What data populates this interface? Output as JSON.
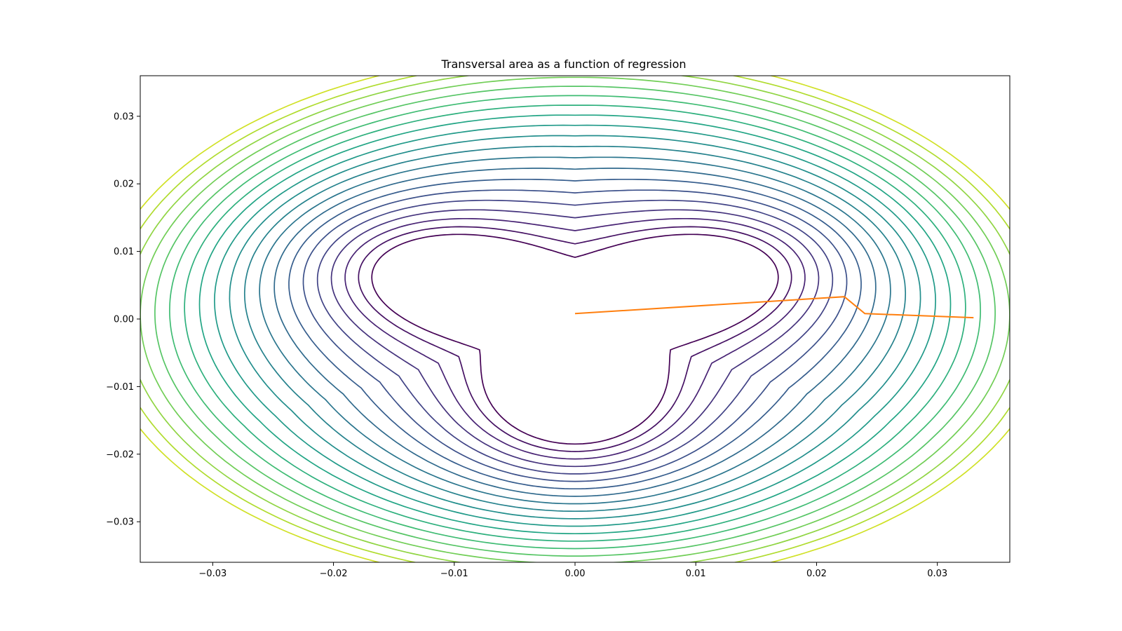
{
  "chart_data": {
    "type": "line",
    "subtype": "contour",
    "title": "Transversal area as a function of regression",
    "xlabel": "",
    "ylabel": "",
    "xlim": [
      -0.036,
      0.036
    ],
    "ylim": [
      -0.036,
      0.036
    ],
    "xticks": [
      -0.03,
      -0.02,
      -0.01,
      0.0,
      0.01,
      0.02,
      0.03
    ],
    "xtick_labels": [
      "−0.03",
      "−0.02",
      "−0.01",
      "0.00",
      "0.01",
      "0.02",
      "0.03"
    ],
    "yticks": [
      0.03,
      0.02,
      0.01,
      0.0,
      -0.01,
      -0.02,
      -0.03
    ],
    "ytick_labels": [
      "0.03",
      "0.02",
      "0.01",
      "0.00",
      "−0.01",
      "−0.02",
      "−0.03"
    ],
    "grid": false,
    "legend": "none",
    "contours": {
      "count": 20,
      "colormap": "viridis",
      "colormap_range": [
        0.0,
        0.93
      ],
      "shape": "three-lobed grain port section growing outward to an ellipse",
      "inner_lobe_directions_deg": [
        30,
        150,
        270
      ],
      "innermost_lobe_radius": 0.0185,
      "innermost_waist_radius": 0.0085,
      "outermost_radius_x": 0.0395,
      "outermost_radius_y": 0.0395
    },
    "series": [
      {
        "color": "#ff7f0e",
        "x": [
          0.0,
          0.0223,
          0.024,
          0.033
        ],
        "y": [
          0.0008,
          0.0033,
          0.0008,
          0.0002
        ]
      }
    ]
  }
}
